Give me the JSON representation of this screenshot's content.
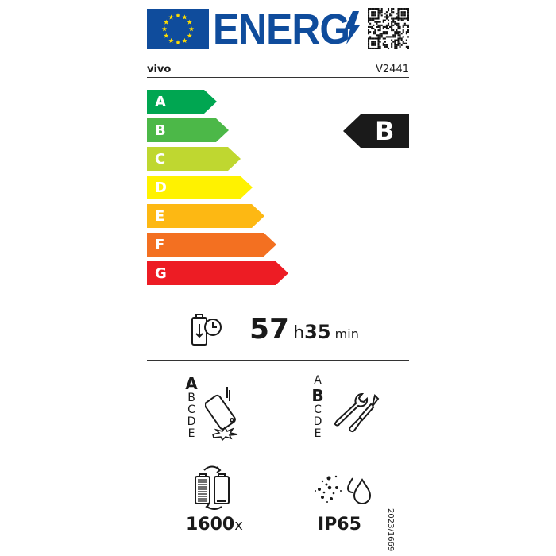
{
  "header": {
    "title": "ENERG",
    "brand": "vivo",
    "model": "V2441"
  },
  "scale": {
    "classes": [
      {
        "label": "A",
        "color": "#00a651"
      },
      {
        "label": "B",
        "color": "#4cb848"
      },
      {
        "label": "C",
        "color": "#bfd730"
      },
      {
        "label": "D",
        "color": "#fff200"
      },
      {
        "label": "E",
        "color": "#fdb813"
      },
      {
        "label": "F",
        "color": "#f37021"
      },
      {
        "label": "G",
        "color": "#ed1c24"
      }
    ],
    "rating": "B"
  },
  "endurance": {
    "hours": "57",
    "hours_unit": "h",
    "minutes": "35",
    "minutes_unit": "min",
    "icon": "battery-clock-icon"
  },
  "drop_resistance": {
    "classes": [
      "A",
      "B",
      "C",
      "D",
      "E"
    ],
    "selected": "A",
    "icon": "phone-drop-icon"
  },
  "repairability": {
    "classes": [
      "A",
      "B",
      "C",
      "D",
      "E"
    ],
    "selected": "B",
    "icon": "wrench-screwdriver-icon"
  },
  "battery_cycles": {
    "value": "1600",
    "unit": "x",
    "icon": "battery-cycle-icon"
  },
  "ingress": {
    "value": "IP65",
    "icon": "dust-water-icon"
  },
  "regulation": "2023/1669",
  "colors": {
    "eu_blue": "#0f4c9c",
    "eu_yellow": "#ffdd00"
  }
}
